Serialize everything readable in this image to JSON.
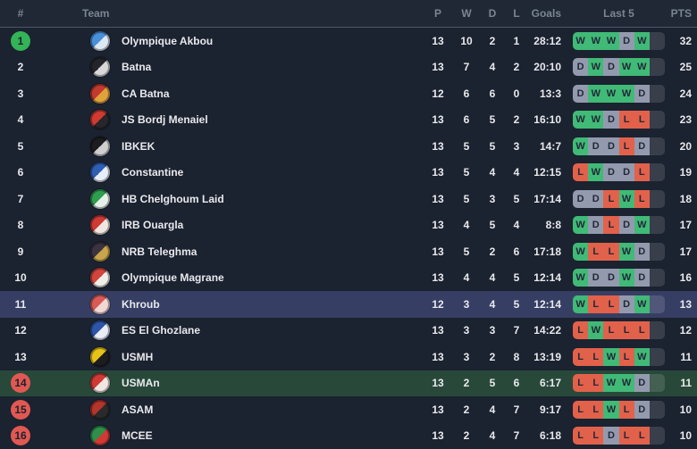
{
  "colors": {
    "background": "#1b2230",
    "header_background": "#202836",
    "header_text": "#7b8492",
    "row_text": "#e9e9ec",
    "header_divider": "#4e5869",
    "win": "#40ba76",
    "draw": "#939aae",
    "loss": "#e2614b",
    "empty_form_slot": "#3a4252",
    "rank_badge_top": "#33b457",
    "rank_badge_bottom": "#e15852",
    "row_highlight_selected": "#363e64",
    "row_highlight_green": "#28493a"
  },
  "table": {
    "headers": {
      "rank": "#",
      "team": "Team",
      "played": "P",
      "wins": "W",
      "draws": "D",
      "losses": "L",
      "goals": "Goals",
      "last5": "Last 5",
      "points": "PTS"
    },
    "rows": [
      {
        "rank": "1",
        "rank_badge": "green",
        "team": "Olympique Akbou",
        "played": "13",
        "wins": "10",
        "draws": "2",
        "losses": "1",
        "goals": "28:12",
        "last5": [
          "W",
          "W",
          "W",
          "D",
          "W"
        ],
        "points": "32",
        "highlight": "none",
        "logo": [
          "#4a90d9",
          "#dce8f2"
        ]
      },
      {
        "rank": "2",
        "rank_badge": "none",
        "team": "Batna",
        "played": "13",
        "wins": "7",
        "draws": "4",
        "losses": "2",
        "goals": "20:10",
        "last5": [
          "D",
          "W",
          "D",
          "W",
          "W"
        ],
        "points": "25",
        "highlight": "none",
        "logo": [
          "#23252a",
          "#d8d8d8"
        ]
      },
      {
        "rank": "3",
        "rank_badge": "none",
        "team": "CA Batna",
        "played": "12",
        "wins": "6",
        "draws": "6",
        "losses": "0",
        "goals": "13:3",
        "last5": [
          "D",
          "W",
          "W",
          "W",
          "D"
        ],
        "points": "24",
        "highlight": "none",
        "logo": [
          "#c23b2e",
          "#e0a33b"
        ]
      },
      {
        "rank": "4",
        "rank_badge": "none",
        "team": "JS Bordj Menaiel",
        "played": "13",
        "wins": "6",
        "draws": "5",
        "losses": "2",
        "goals": "16:10",
        "last5": [
          "W",
          "W",
          "D",
          "L",
          "L"
        ],
        "points": "23",
        "highlight": "none",
        "logo": [
          "#d03a30",
          "#26262b"
        ]
      },
      {
        "rank": "5",
        "rank_badge": "none",
        "team": "IBKEK",
        "played": "13",
        "wins": "5",
        "draws": "5",
        "losses": "3",
        "goals": "14:7",
        "last5": [
          "W",
          "D",
          "D",
          "L",
          "D"
        ],
        "points": "20",
        "highlight": "none",
        "logo": [
          "#1d1d21",
          "#cfcfcf"
        ]
      },
      {
        "rank": "6",
        "rank_badge": "none",
        "team": "Constantine",
        "played": "13",
        "wins": "5",
        "draws": "4",
        "losses": "4",
        "goals": "12:15",
        "last5": [
          "L",
          "W",
          "D",
          "D",
          "L"
        ],
        "points": "19",
        "highlight": "none",
        "logo": [
          "#2f5fb5",
          "#e8eef8"
        ]
      },
      {
        "rank": "7",
        "rank_badge": "none",
        "team": "HB Chelghoum Laid",
        "played": "13",
        "wins": "5",
        "draws": "3",
        "losses": "5",
        "goals": "17:14",
        "last5": [
          "D",
          "D",
          "L",
          "W",
          "L"
        ],
        "points": "18",
        "highlight": "none",
        "logo": [
          "#2f9e4f",
          "#e6f0e8"
        ]
      },
      {
        "rank": "8",
        "rank_badge": "none",
        "team": "IRB Ouargla",
        "played": "13",
        "wins": "4",
        "draws": "5",
        "losses": "4",
        "goals": "8:8",
        "last5": [
          "W",
          "D",
          "L",
          "D",
          "W"
        ],
        "points": "17",
        "highlight": "none",
        "logo": [
          "#cf3a35",
          "#f0e8e0"
        ]
      },
      {
        "rank": "9",
        "rank_badge": "none",
        "team": "NRB Teleghma",
        "played": "13",
        "wins": "5",
        "draws": "2",
        "losses": "6",
        "goals": "17:18",
        "last5": [
          "W",
          "L",
          "L",
          "W",
          "D"
        ],
        "points": "17",
        "highlight": "none",
        "logo": [
          "#3a3340",
          "#c8a44a"
        ]
      },
      {
        "rank": "10",
        "rank_badge": "none",
        "team": "Olympique Magrane",
        "played": "13",
        "wins": "4",
        "draws": "4",
        "losses": "5",
        "goals": "12:14",
        "last5": [
          "W",
          "D",
          "D",
          "W",
          "D"
        ],
        "points": "16",
        "highlight": "none",
        "logo": [
          "#d1453c",
          "#f0eee8"
        ]
      },
      {
        "rank": "11",
        "rank_badge": "none",
        "team": "Khroub",
        "played": "12",
        "wins": "3",
        "draws": "4",
        "losses": "5",
        "goals": "12:14",
        "last5": [
          "W",
          "L",
          "L",
          "D",
          "W"
        ],
        "points": "13",
        "highlight": "selected",
        "logo": [
          "#d85c55",
          "#f2d8d4"
        ]
      },
      {
        "rank": "12",
        "rank_badge": "none",
        "team": "ES El Ghozlane",
        "played": "13",
        "wins": "3",
        "draws": "3",
        "losses": "7",
        "goals": "14:22",
        "last5": [
          "L",
          "W",
          "L",
          "L",
          "L"
        ],
        "points": "12",
        "highlight": "none",
        "logo": [
          "#2f55a8",
          "#e8edf6"
        ]
      },
      {
        "rank": "13",
        "rank_badge": "none",
        "team": "USMH",
        "played": "13",
        "wins": "3",
        "draws": "2",
        "losses": "8",
        "goals": "13:19",
        "last5": [
          "L",
          "L",
          "W",
          "L",
          "W"
        ],
        "points": "11",
        "highlight": "none",
        "logo": [
          "#e5c318",
          "#1d1d21"
        ]
      },
      {
        "rank": "14",
        "rank_badge": "red",
        "team": "USMAn",
        "played": "13",
        "wins": "2",
        "draws": "5",
        "losses": "6",
        "goals": "6:17",
        "last5": [
          "L",
          "L",
          "W",
          "W",
          "D"
        ],
        "points": "11",
        "highlight": "green",
        "logo": [
          "#d03a35",
          "#f0e6e2"
        ]
      },
      {
        "rank": "15",
        "rank_badge": "red",
        "team": "ASAM",
        "played": "13",
        "wins": "2",
        "draws": "4",
        "losses": "7",
        "goals": "9:17",
        "last5": [
          "L",
          "L",
          "W",
          "L",
          "D"
        ],
        "points": "10",
        "highlight": "none",
        "logo": [
          "#b5342c",
          "#2a2a2a"
        ]
      },
      {
        "rank": "16",
        "rank_badge": "red",
        "team": "MCEE",
        "played": "13",
        "wins": "2",
        "draws": "4",
        "losses": "7",
        "goals": "6:18",
        "last5": [
          "L",
          "L",
          "D",
          "L",
          "L"
        ],
        "points": "10",
        "highlight": "none",
        "logo": [
          "#2f8f4a",
          "#d03a35"
        ]
      }
    ]
  }
}
